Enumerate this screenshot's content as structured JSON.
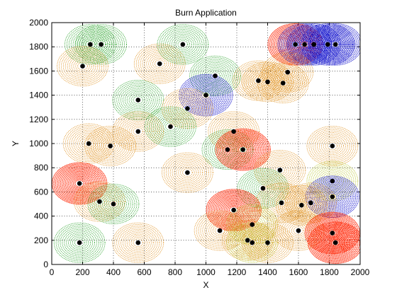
{
  "chart_data": {
    "type": "scatter",
    "title": "Burn Application",
    "xlabel": "X",
    "ylabel": "Y",
    "xlim": [
      0,
      2000
    ],
    "ylim": [
      0,
      2000
    ],
    "xticks": [
      0,
      200,
      400,
      600,
      800,
      1000,
      1200,
      1400,
      1600,
      1800,
      2000
    ],
    "yticks": [
      0,
      200,
      400,
      600,
      800,
      1000,
      1200,
      1400,
      1600,
      1800,
      2000
    ],
    "grid": true,
    "grid_style": "dotted",
    "colors": {
      "green": "#22a022",
      "orange": "#e0901c",
      "red": "#ff2200",
      "blue": "#1010cc",
      "olive": "#b3c21a"
    },
    "points": [
      {
        "x": 250,
        "y": 1820,
        "burn": "green"
      },
      {
        "x": 320,
        "y": 1820,
        "burn": "green"
      },
      {
        "x": 200,
        "y": 1640,
        "burn": "orange"
      },
      {
        "x": 700,
        "y": 1660,
        "burn": "orange"
      },
      {
        "x": 850,
        "y": 1820,
        "burn": "green"
      },
      {
        "x": 1580,
        "y": 1820,
        "burn": "red"
      },
      {
        "x": 1640,
        "y": 1820,
        "burn": "blue"
      },
      {
        "x": 1700,
        "y": 1820,
        "burn": "blue"
      },
      {
        "x": 1790,
        "y": 1820,
        "burn": "blue"
      },
      {
        "x": 1840,
        "y": 1820,
        "burn": "blue"
      },
      {
        "x": 1060,
        "y": 1560,
        "burn": "green"
      },
      {
        "x": 1340,
        "y": 1520,
        "burn": "orange"
      },
      {
        "x": 1400,
        "y": 1510,
        "burn": "orange"
      },
      {
        "x": 1500,
        "y": 1500,
        "burn": "orange"
      },
      {
        "x": 1530,
        "y": 1590,
        "burn": "orange"
      },
      {
        "x": 560,
        "y": 1360,
        "burn": "green"
      },
      {
        "x": 1000,
        "y": 1400,
        "burn": "blue"
      },
      {
        "x": 880,
        "y": 1290,
        "burn": "orange"
      },
      {
        "x": 560,
        "y": 1100,
        "burn": "orange"
      },
      {
        "x": 770,
        "y": 1140,
        "burn": "green"
      },
      {
        "x": 1180,
        "y": 1100,
        "burn": "orange"
      },
      {
        "x": 240,
        "y": 1000,
        "burn": "orange"
      },
      {
        "x": 380,
        "y": 980,
        "burn": "orange"
      },
      {
        "x": 1140,
        "y": 950,
        "burn": "green"
      },
      {
        "x": 1240,
        "y": 950,
        "burn": "red"
      },
      {
        "x": 1820,
        "y": 980,
        "burn": "orange"
      },
      {
        "x": 880,
        "y": 760,
        "burn": "orange"
      },
      {
        "x": 1480,
        "y": 780,
        "burn": "orange"
      },
      {
        "x": 180,
        "y": 670,
        "burn": "red"
      },
      {
        "x": 1370,
        "y": 630,
        "burn": "green"
      },
      {
        "x": 1820,
        "y": 690,
        "burn": "olive"
      },
      {
        "x": 1820,
        "y": 560,
        "burn": "blue"
      },
      {
        "x": 310,
        "y": 520,
        "burn": "orange"
      },
      {
        "x": 400,
        "y": 500,
        "burn": "green"
      },
      {
        "x": 1180,
        "y": 450,
        "burn": "red"
      },
      {
        "x": 1490,
        "y": 510,
        "burn": "orange"
      },
      {
        "x": 1620,
        "y": 490,
        "burn": "orange"
      },
      {
        "x": 1680,
        "y": 510,
        "burn": "orange"
      },
      {
        "x": 1090,
        "y": 280,
        "burn": "orange"
      },
      {
        "x": 1300,
        "y": 330,
        "burn": "olive"
      },
      {
        "x": 1270,
        "y": 200,
        "burn": "orange"
      },
      {
        "x": 1300,
        "y": 180,
        "burn": "olive"
      },
      {
        "x": 1400,
        "y": 180,
        "burn": "orange"
      },
      {
        "x": 1600,
        "y": 280,
        "burn": "orange"
      },
      {
        "x": 1820,
        "y": 260,
        "burn": "red"
      },
      {
        "x": 1840,
        "y": 180,
        "burn": "red"
      },
      {
        "x": 180,
        "y": 180,
        "burn": "green"
      },
      {
        "x": 560,
        "y": 180,
        "burn": "orange"
      }
    ]
  }
}
